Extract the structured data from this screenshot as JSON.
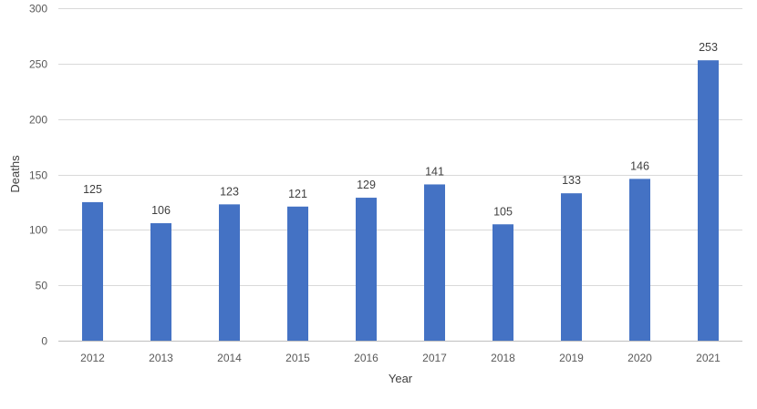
{
  "chart_data": {
    "type": "bar",
    "title": "",
    "xlabel": "Year",
    "ylabel": "Deaths",
    "categories": [
      "2012",
      "2013",
      "2014",
      "2015",
      "2016",
      "2017",
      "2018",
      "2019",
      "2020",
      "2021"
    ],
    "series": [
      {
        "values": [
          125,
          106,
          123,
          121,
          129,
          141,
          105,
          133,
          146,
          253
        ],
        "color": "#4472c4"
      }
    ],
    "ylim": [
      0,
      300
    ],
    "yticks": [
      0,
      50,
      100,
      150,
      200,
      250,
      300
    ],
    "grid": true,
    "legend": "none",
    "data_labels": true
  }
}
